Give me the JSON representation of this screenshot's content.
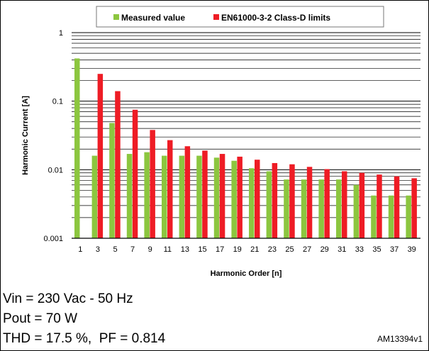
{
  "colors": {
    "measured": "#8cc63f",
    "limits": "#ee1c25",
    "grid": "#000000"
  },
  "legend": {
    "measured_label": "Measured value",
    "limits_label": "EN61000-3-2 Class-D limits",
    "placement": "top-center"
  },
  "chart_data": {
    "type": "bar",
    "xlabel": "Harmonic Order [n]",
    "ylabel": "Harmonic Current [A]",
    "y_scale": "log",
    "ylim": [
      0.001,
      1
    ],
    "y_ticks": [
      0.001,
      0.01,
      0.1,
      1
    ],
    "y_tick_labels": [
      "0.001",
      "0.01",
      "0.1",
      "1"
    ],
    "grid": true,
    "categories": [
      "1",
      "3",
      "5",
      "7",
      "9",
      "11",
      "13",
      "15",
      "17",
      "19",
      "21",
      "23",
      "25",
      "27",
      "29",
      "31",
      "33",
      "35",
      "37",
      "39"
    ],
    "series": [
      {
        "name": "Measured value",
        "values": [
          0.42,
          0.016,
          0.048,
          0.017,
          0.018,
          0.016,
          0.016,
          0.016,
          0.015,
          0.0135,
          0.0105,
          0.0095,
          0.0072,
          0.0072,
          0.0072,
          0.0072,
          0.006,
          0.0042,
          0.0042,
          0.0042
        ]
      },
      {
        "name": "EN61000-3-2 Class-D limits",
        "values": [
          null,
          0.25,
          0.14,
          0.075,
          0.038,
          0.027,
          0.022,
          0.019,
          0.017,
          0.0155,
          0.014,
          0.0125,
          0.012,
          0.011,
          0.0102,
          0.0095,
          0.009,
          0.0085,
          0.008,
          0.0075
        ]
      }
    ]
  },
  "notes": {
    "line1": "Vin = 230 Vac - 50 Hz",
    "line2": "Pout = 70 W",
    "line3": "THD = 17.5 %,  PF = 0.814"
  },
  "figure_id": "AM13394v1"
}
